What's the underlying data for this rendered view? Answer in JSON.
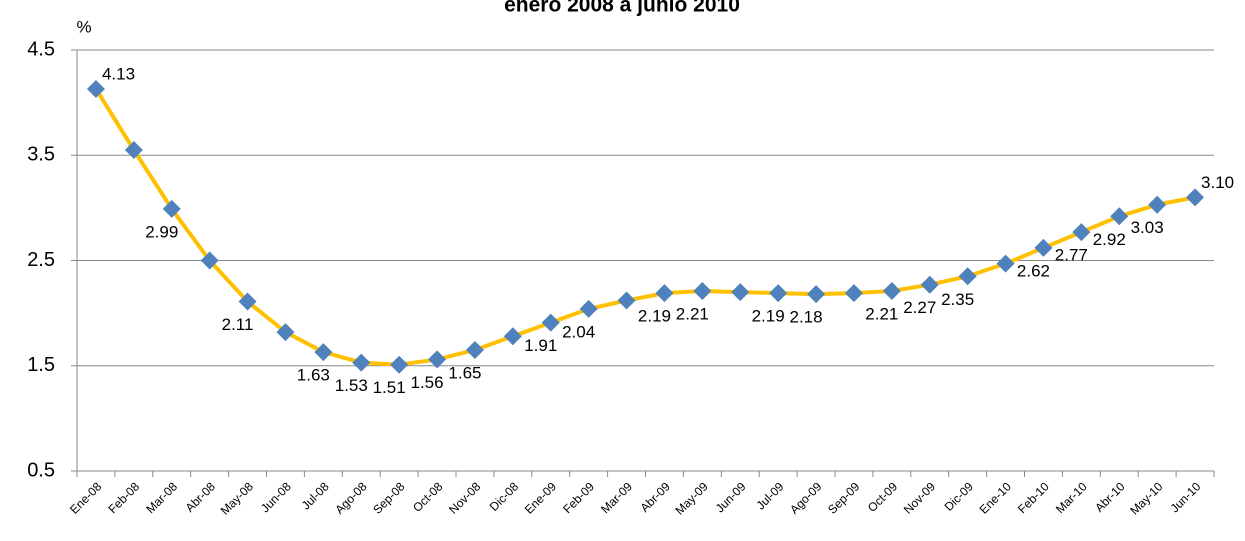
{
  "chart_data": {
    "type": "line",
    "title": "enero 2008 a junio 2010",
    "y_label": "%",
    "categories": [
      "Ene-08",
      "Feb-08",
      "Mar-08",
      "Abr-08",
      "May-08",
      "Jun-08",
      "Jul-08",
      "Ago-08",
      "Sep-08",
      "Oct-08",
      "Nov-08",
      "Dic-08",
      "Ene-09",
      "Feb-09",
      "Mar-09",
      "Abr-09",
      "May-09",
      "Jun-09",
      "Jul-09",
      "Ago-09",
      "Sep-09",
      "Oct-09",
      "Nov-09",
      "Dic-09",
      "Ene-10",
      "Feb-10",
      "Mar-10",
      "Abr-10",
      "May-10",
      "Jun-10"
    ],
    "series": [
      {
        "name": "%",
        "color": "#FFC000",
        "marker_color": "#4F81BD",
        "values": [
          4.13,
          3.55,
          2.99,
          2.5,
          2.11,
          1.82,
          1.63,
          1.53,
          1.51,
          1.56,
          1.65,
          1.78,
          1.91,
          2.04,
          2.12,
          2.19,
          2.21,
          2.2,
          2.19,
          2.18,
          2.19,
          2.21,
          2.27,
          2.35,
          2.47,
          2.62,
          2.77,
          2.92,
          3.03,
          3.1
        ],
        "value_labels": [
          "4.13",
          null,
          "2.99",
          null,
          "2.11",
          null,
          "1.63",
          "1.53",
          "1.51",
          "1.56",
          "1.65",
          null,
          "1.91",
          "2.04",
          null,
          "2.19",
          "2.21",
          null,
          "2.19",
          "2.18",
          null,
          "2.21",
          "2.27",
          "2.35",
          null,
          "2.62",
          "2.77",
          "2.92",
          "3.03",
          "3.10"
        ]
      }
    ],
    "ylim": [
      0.5,
      4.5
    ],
    "yticks": [
      0.5,
      1.5,
      2.5,
      3.5,
      4.5
    ],
    "grid": true
  }
}
